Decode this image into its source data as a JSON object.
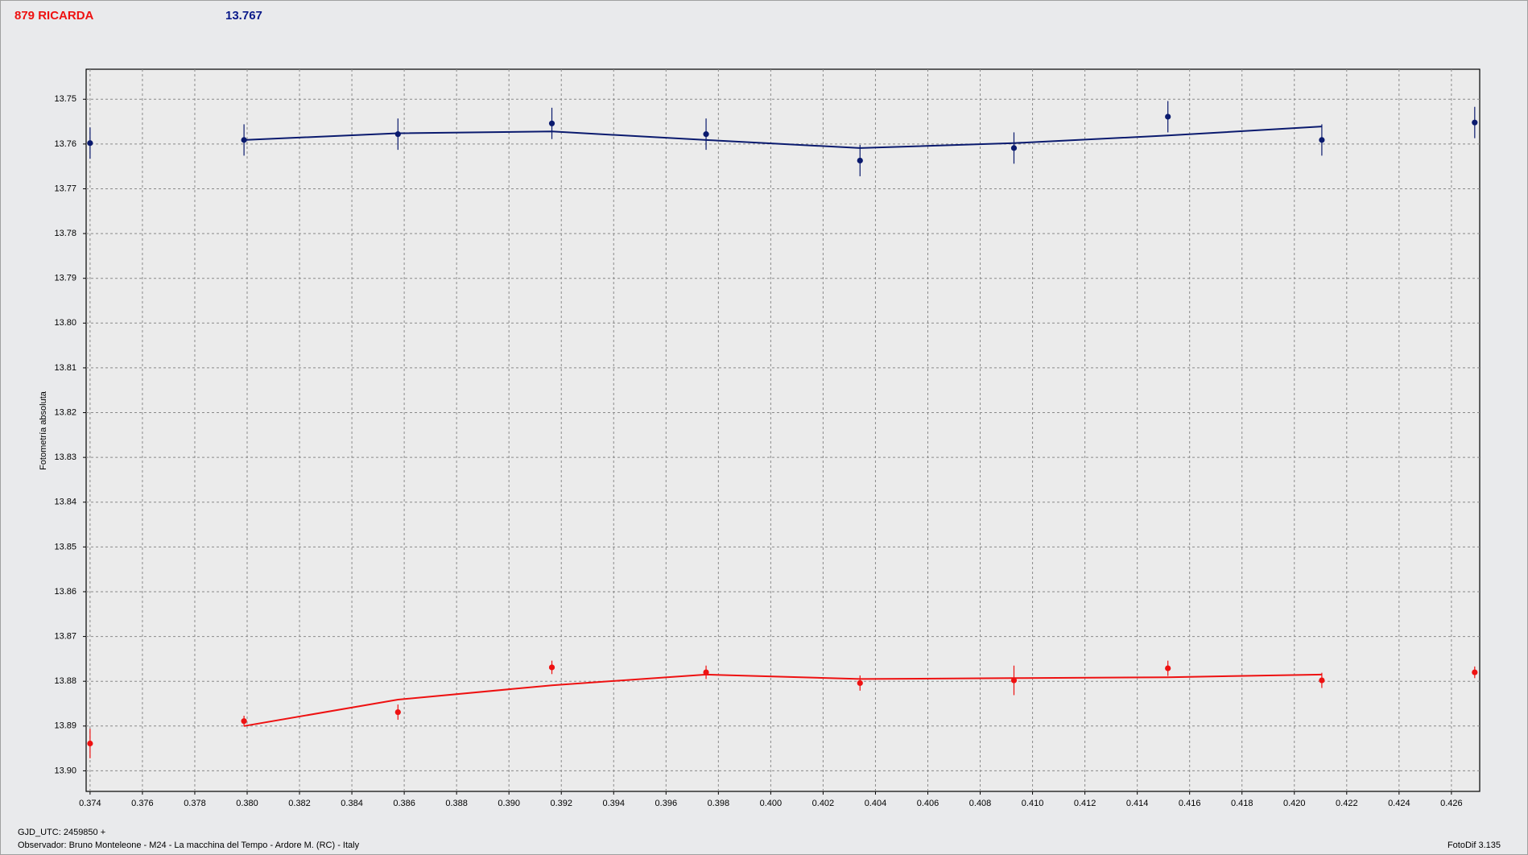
{
  "chart_data": {
    "type": "scatter",
    "title": "879 RICARDA",
    "subtitle": "13.767",
    "y_label": "Fotometría absoluta",
    "x_label": "GJD_UTC: 2459850 +",
    "footer": "Observador: Bruno Monteleone - M24 - La macchina del Tempo - Ardore M. (RC) - Italy",
    "software": "FotoDif 3.135",
    "title_color": "#ee1111",
    "subtitle_color": "#0a1a8a",
    "grid": true,
    "y_inverted": true,
    "xlim": [
      0.37385,
      0.42708
    ],
    "ylim": [
      13.7433,
      13.9046
    ],
    "xticks": [
      0.374,
      0.376,
      0.378,
      {
        "value": 0.38,
        "label": "0.380"
      },
      0.382,
      0.384,
      0.386,
      0.388,
      {
        "value": 0.39,
        "label": "0.390"
      },
      0.392,
      0.394,
      0.396,
      0.398,
      {
        "value": 0.4,
        "label": "0.400"
      },
      0.402,
      0.404,
      0.406,
      0.408,
      {
        "value": 0.41,
        "label": "0.410"
      },
      0.412,
      0.414,
      0.416,
      0.418,
      {
        "value": 0.42,
        "label": "0.420"
      },
      0.422,
      0.424,
      0.426
    ],
    "yticks": [
      13.75,
      13.76,
      13.77,
      13.78,
      13.79,
      {
        "value": 13.8,
        "label": "13.80"
      },
      13.81,
      13.82,
      13.83,
      13.84,
      13.85,
      13.86,
      13.87,
      13.88,
      13.89,
      {
        "value": 13.9,
        "label": "13.90"
      }
    ],
    "series": [
      {
        "style": "points",
        "color": "#0a1a6e",
        "x": [
          0.374,
          0.37988,
          0.38576,
          0.39164,
          0.39753,
          0.40341,
          0.40929,
          0.41517,
          0.42105,
          0.42689
        ],
        "values": [
          13.7598,
          13.7591,
          13.7578,
          13.7554,
          13.7578,
          13.7637,
          13.7609,
          13.7539,
          13.7591,
          13.7552
        ],
        "errors": [
          0.0035,
          0.0035,
          0.0035,
          0.0035,
          0.0035,
          0.0035,
          0.0035,
          0.0035,
          0.0035,
          0.0035
        ]
      },
      {
        "style": "line",
        "color": "#0a1a6e",
        "x": [
          0.37988,
          0.38576,
          0.39164,
          0.39753,
          0.40341,
          0.40929,
          0.41517,
          0.42105
        ],
        "values": [
          13.7591,
          13.7576,
          13.7572,
          13.7591,
          13.7609,
          13.7598,
          13.7581,
          13.7561
        ]
      },
      {
        "style": "points",
        "color": "#ee1111",
        "x": [
          0.374,
          0.37988,
          0.38576,
          0.39164,
          0.39753,
          0.40341,
          0.40929,
          0.41517,
          0.42105,
          0.42689
        ],
        "values": [
          13.8939,
          13.8889,
          13.8869,
          13.8769,
          13.878,
          13.8804,
          13.8798,
          13.8771,
          13.8798,
          13.878
        ],
        "errors": [
          0.0033,
          0.0012,
          0.0017,
          0.0015,
          0.0015,
          0.0017,
          0.0033,
          0.0017,
          0.0017,
          0.0013
        ]
      },
      {
        "style": "line",
        "color": "#ee1111",
        "x": [
          0.37988,
          0.38576,
          0.39164,
          0.39753,
          0.40341,
          0.40929,
          0.41517,
          0.42105
        ],
        "values": [
          13.89,
          13.8841,
          13.8809,
          13.8785,
          13.8795,
          13.8793,
          13.8791,
          13.8785
        ]
      }
    ]
  }
}
